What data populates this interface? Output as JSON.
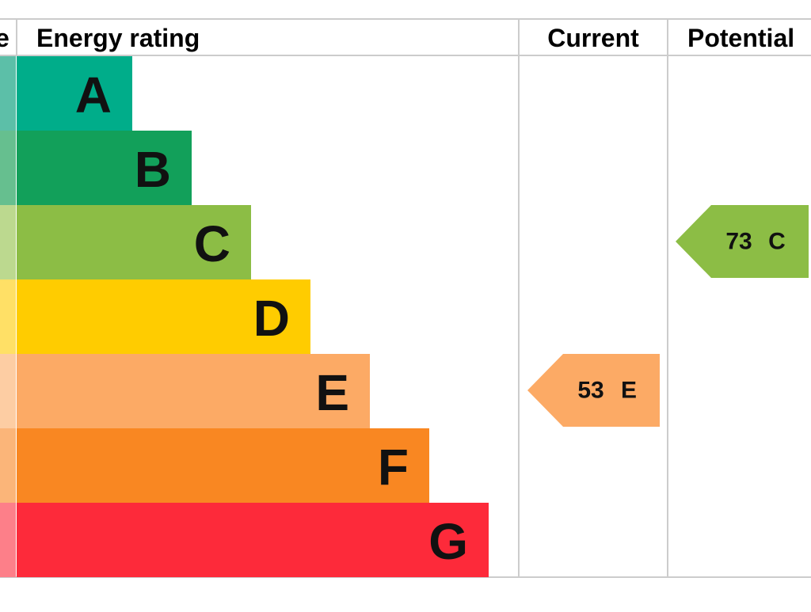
{
  "header": {
    "score": "e",
    "rating": "Energy rating",
    "current": "Current",
    "potential": "Potential"
  },
  "bands": [
    {
      "letter": "A",
      "color": "#00ad8a",
      "tint": "#5cbfa8"
    },
    {
      "letter": "B",
      "color": "#12a05a",
      "tint": "#66bf8f"
    },
    {
      "letter": "C",
      "color": "#8cbd45",
      "tint": "#bcd98f"
    },
    {
      "letter": "D",
      "color": "#ffcc00",
      "tint": "#ffe066"
    },
    {
      "letter": "E",
      "color": "#fcaa65",
      "tint": "#fdcda3"
    },
    {
      "letter": "F",
      "color": "#f98722",
      "tint": "#fbb579"
    },
    {
      "letter": "G",
      "color": "#fd2a3a",
      "tint": "#fd7f89"
    }
  ],
  "current": {
    "value": 53,
    "letter": "E"
  },
  "potential": {
    "value": 73,
    "letter": "C"
  }
}
